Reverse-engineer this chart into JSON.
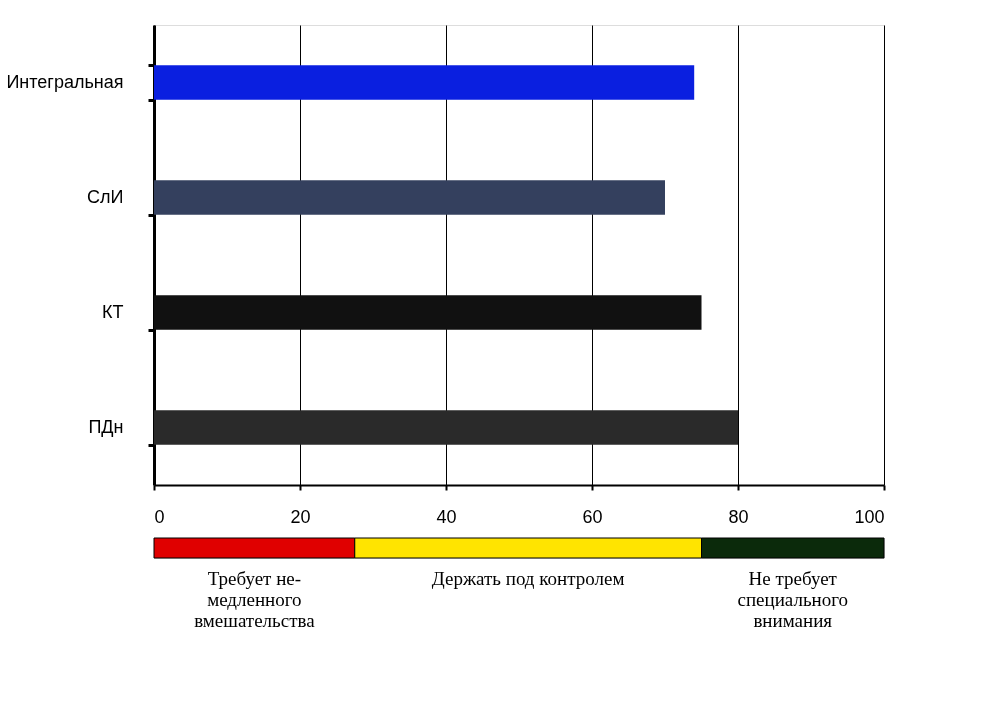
{
  "chart_data": [
    {
      "type": "bar",
      "orientation": "horizontal",
      "categories": [
        "Интегральная",
        "СлИ",
        "КТ",
        "ПДн"
      ],
      "values": [
        74,
        70,
        75,
        80
      ],
      "colors": [
        "#0a1fe0",
        "#34405e",
        "#111111",
        "#2a2a2a"
      ],
      "xlim": [
        0,
        100
      ],
      "xticks": [
        0,
        20,
        40,
        60,
        80,
        100
      ],
      "grid": "x"
    },
    {
      "type": "bar",
      "orientation": "horizontal",
      "stacked": true,
      "categories": [
        null
      ],
      "xlim": [
        0,
        100
      ],
      "tick_labels": false,
      "series": [
        {
          "name": "Требует не-\nмедленного\nвмешательства",
          "color": "#e00000",
          "values": [
            27.5
          ]
        },
        {
          "name": "Держать под контролем",
          "color": "#ffe400",
          "values": [
            47.5
          ]
        },
        {
          "name": "Не требует\nспециального\nвнимания",
          "color": "#0b2a0b",
          "values": [
            25
          ]
        }
      ]
    }
  ]
}
